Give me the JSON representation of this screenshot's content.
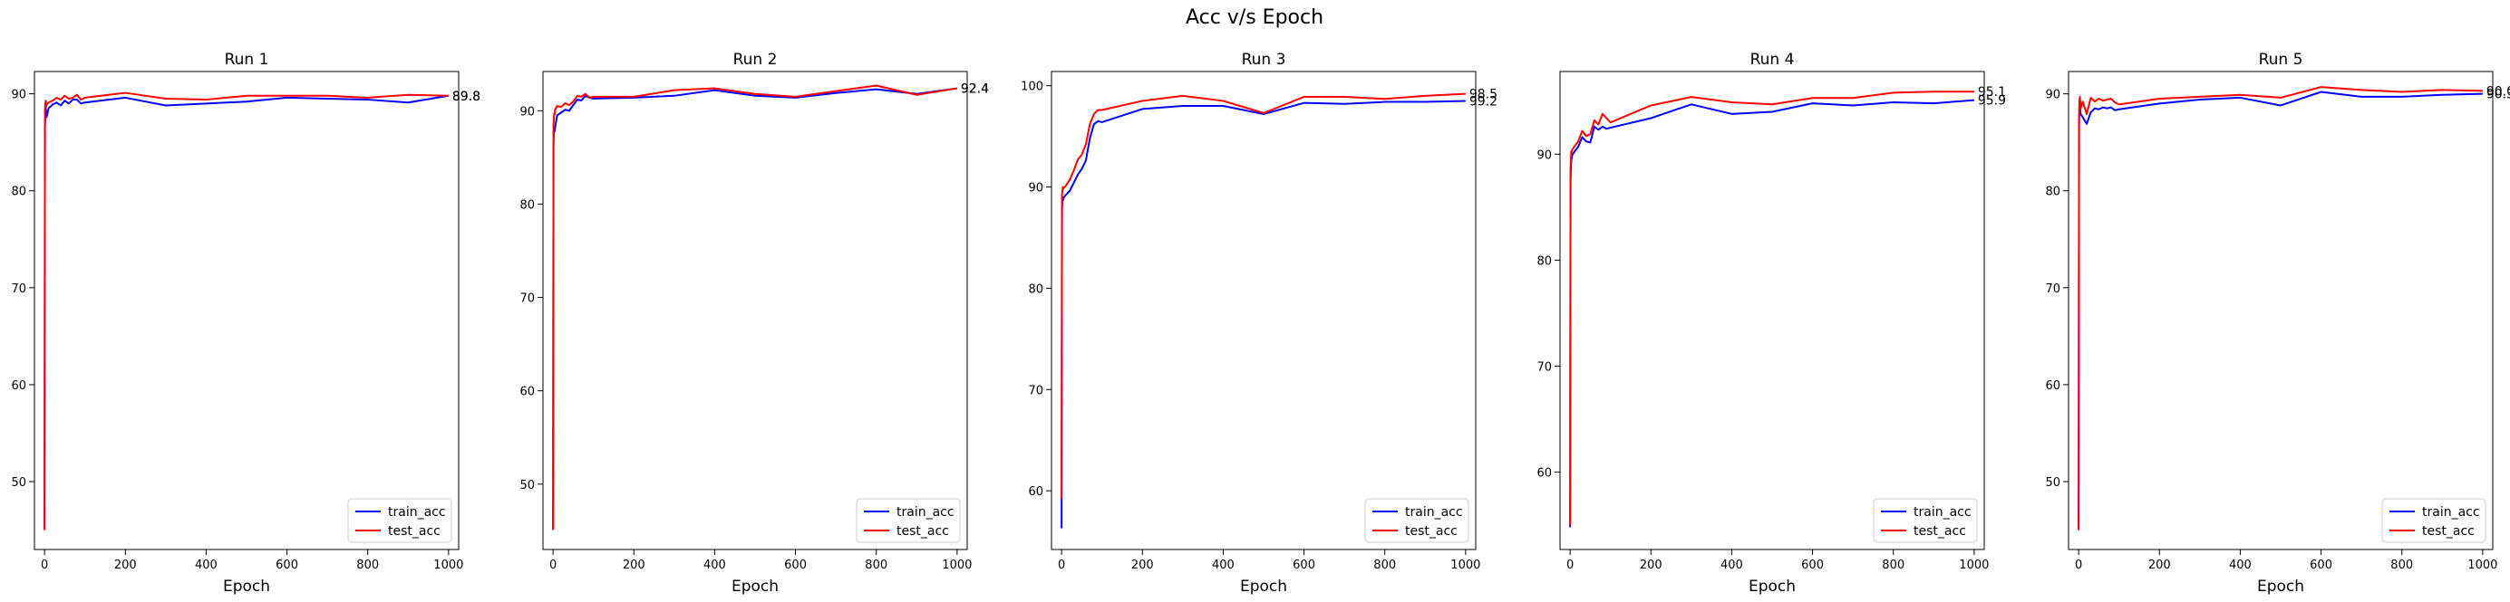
{
  "suptitle": "Acc v/s Epoch",
  "colors": {
    "train": "#0000ff",
    "test": "#ff0000"
  },
  "chart_data": [
    {
      "type": "line",
      "title": "Run 1",
      "xlabel": "Epoch",
      "ylabel": "",
      "xlim": [
        -25,
        1025
      ],
      "ylim": [
        43.0,
        92.3
      ],
      "xticks": [
        0,
        200,
        400,
        600,
        800,
        1000
      ],
      "yticks": [
        50,
        60,
        70,
        80,
        90
      ],
      "legend": "lower right",
      "grid": false,
      "x": [
        0,
        1,
        2,
        3,
        4,
        5,
        10,
        20,
        30,
        40,
        50,
        60,
        70,
        80,
        90,
        100,
        200,
        300,
        400,
        500,
        600,
        700,
        800,
        900,
        1000
      ],
      "series": [
        {
          "name": "train_acc",
          "color": "#0000ff",
          "values": [
            45.2,
            86.5,
            87.8,
            88.6,
            88.0,
            87.6,
            88.5,
            88.9,
            89.1,
            88.8,
            89.3,
            89.0,
            89.4,
            89.4,
            89.0,
            89.1,
            89.6,
            88.8,
            89.0,
            89.2,
            89.6,
            89.5,
            89.4,
            89.1,
            89.8
          ]
        },
        {
          "name": "test_acc",
          "color": "#ff0000",
          "values": [
            45.0,
            88.4,
            89.0,
            89.3,
            88.7,
            88.9,
            89.1,
            89.3,
            89.6,
            89.4,
            89.8,
            89.5,
            89.6,
            89.9,
            89.4,
            89.6,
            90.1,
            89.5,
            89.4,
            89.8,
            89.8,
            89.8,
            89.6,
            89.9,
            89.8
          ]
        }
      ],
      "end_labels": [
        "89.8",
        "89.8"
      ]
    },
    {
      "type": "line",
      "title": "Run 2",
      "xlabel": "Epoch",
      "ylabel": "",
      "xlim": [
        -25,
        1025
      ],
      "ylim": [
        43.0,
        94.2
      ],
      "xticks": [
        0,
        200,
        400,
        600,
        800,
        1000
      ],
      "yticks": [
        50,
        60,
        70,
        80,
        90
      ],
      "legend": "lower right",
      "grid": false,
      "x": [
        0,
        1,
        2,
        3,
        4,
        5,
        10,
        20,
        30,
        40,
        50,
        60,
        70,
        80,
        90,
        100,
        200,
        300,
        400,
        500,
        600,
        700,
        800,
        900,
        1000
      ],
      "series": [
        {
          "name": "train_acc",
          "color": "#0000ff",
          "values": [
            45.3,
            86.5,
            87.6,
            88.1,
            87.8,
            88.2,
            89.5,
            89.8,
            90.1,
            90.0,
            90.6,
            91.2,
            91.1,
            91.6,
            91.4,
            91.3,
            91.4,
            91.6,
            92.2,
            91.6,
            91.4,
            91.9,
            92.3,
            91.8,
            92.4
          ]
        },
        {
          "name": "test_acc",
          "color": "#ff0000",
          "values": [
            45.1,
            88.4,
            89.2,
            89.7,
            89.6,
            90.1,
            90.5,
            90.4,
            90.8,
            90.6,
            91.0,
            91.6,
            91.5,
            91.8,
            91.4,
            91.5,
            91.5,
            92.2,
            92.4,
            91.8,
            91.5,
            92.1,
            92.7,
            91.7,
            92.4
          ]
        }
      ],
      "end_labels": [
        "92.4",
        "92.4"
      ]
    },
    {
      "type": "line",
      "title": "Run 3",
      "xlabel": "Epoch",
      "ylabel": "",
      "xlim": [
        -25,
        1025
      ],
      "ylim": [
        54.2,
        101.4
      ],
      "xticks": [
        0,
        200,
        400,
        600,
        800,
        1000
      ],
      "yticks": [
        60,
        70,
        80,
        90,
        100
      ],
      "legend": "lower right",
      "grid": false,
      "x": [
        0,
        1,
        2,
        3,
        4,
        5,
        10,
        20,
        30,
        40,
        50,
        60,
        70,
        80,
        90,
        100,
        200,
        300,
        400,
        500,
        600,
        700,
        800,
        900,
        1000
      ],
      "series": [
        {
          "name": "train_acc",
          "color": "#0000ff",
          "values": [
            56.3,
            87.8,
            88.5,
            89.0,
            88.7,
            88.9,
            89.2,
            89.6,
            90.4,
            91.2,
            91.8,
            92.6,
            94.8,
            96.2,
            96.5,
            96.4,
            97.7,
            98.0,
            98.0,
            97.2,
            98.3,
            98.2,
            98.4,
            98.4,
            98.5
          ]
        },
        {
          "name": "test_acc",
          "color": "#ff0000",
          "values": [
            59.2,
            89.2,
            89.6,
            90.0,
            89.8,
            89.9,
            90.1,
            90.7,
            91.6,
            92.7,
            93.2,
            94.2,
            96.2,
            97.2,
            97.6,
            97.6,
            98.5,
            99.0,
            98.5,
            97.3,
            98.9,
            98.9,
            98.7,
            99.0,
            99.2
          ]
        }
      ],
      "end_labels": [
        "99.2",
        "98.5"
      ]
    },
    {
      "type": "line",
      "title": "Run 4",
      "xlabel": "Epoch",
      "ylabel": "",
      "xlim": [
        -25,
        1025
      ],
      "ylim": [
        52.7,
        97.8
      ],
      "xticks": [
        0,
        200,
        400,
        600,
        800,
        1000
      ],
      "yticks": [
        60,
        70,
        80,
        90
      ],
      "legend": "lower right",
      "grid": false,
      "x": [
        0,
        1,
        2,
        3,
        4,
        5,
        10,
        20,
        30,
        40,
        50,
        60,
        70,
        80,
        90,
        100,
        200,
        300,
        400,
        500,
        600,
        700,
        800,
        900,
        1000
      ],
      "series": [
        {
          "name": "train_acc",
          "color": "#0000ff",
          "values": [
            54.8,
            87.5,
            88.6,
            89.5,
            89.6,
            89.9,
            90.2,
            90.7,
            91.6,
            91.2,
            91.1,
            92.6,
            92.3,
            92.6,
            92.4,
            92.5,
            93.4,
            94.7,
            93.8,
            94.0,
            94.8,
            94.6,
            94.9,
            94.8,
            95.1
          ]
        },
        {
          "name": "test_acc",
          "color": "#ff0000",
          "values": [
            55.0,
            88.6,
            89.6,
            90.3,
            90.2,
            90.4,
            90.7,
            91.2,
            92.2,
            91.7,
            91.9,
            93.2,
            92.8,
            93.8,
            93.4,
            93.0,
            94.6,
            95.4,
            94.9,
            94.7,
            95.3,
            95.3,
            95.8,
            95.9,
            95.9
          ]
        }
      ],
      "end_labels": [
        "95.9",
        "95.1"
      ]
    },
    {
      "type": "line",
      "title": "Run 5",
      "xlabel": "Epoch",
      "ylabel": "",
      "xlim": [
        -25,
        1025
      ],
      "ylim": [
        43.0,
        92.3
      ],
      "xticks": [
        0,
        200,
        400,
        600,
        800,
        1000
      ],
      "yticks": [
        50,
        60,
        70,
        80,
        90
      ],
      "legend": "lower right",
      "grid": false,
      "x": [
        0,
        1,
        2,
        3,
        4,
        5,
        10,
        20,
        30,
        40,
        50,
        60,
        70,
        80,
        90,
        100,
        200,
        300,
        400,
        500,
        600,
        700,
        800,
        900,
        1000
      ],
      "series": [
        {
          "name": "train_acc",
          "color": "#0000ff",
          "values": [
            45.2,
            86.8,
            88.9,
            89.5,
            88.2,
            87.9,
            87.6,
            86.9,
            88.1,
            88.5,
            88.4,
            88.6,
            88.5,
            88.6,
            88.3,
            88.4,
            89.0,
            89.4,
            89.6,
            88.8,
            90.2,
            89.7,
            89.7,
            89.9,
            90.0
          ]
        },
        {
          "name": "test_acc",
          "color": "#ff0000",
          "values": [
            45.0,
            87.5,
            89.3,
            89.7,
            89.2,
            88.5,
            89.2,
            87.9,
            89.6,
            89.2,
            89.5,
            89.3,
            89.4,
            89.5,
            89.1,
            88.9,
            89.5,
            89.7,
            89.9,
            89.6,
            90.7,
            90.4,
            90.2,
            90.4,
            90.3
          ]
        }
      ],
      "end_labels": [
        "90.3",
        "90.0"
      ]
    }
  ]
}
